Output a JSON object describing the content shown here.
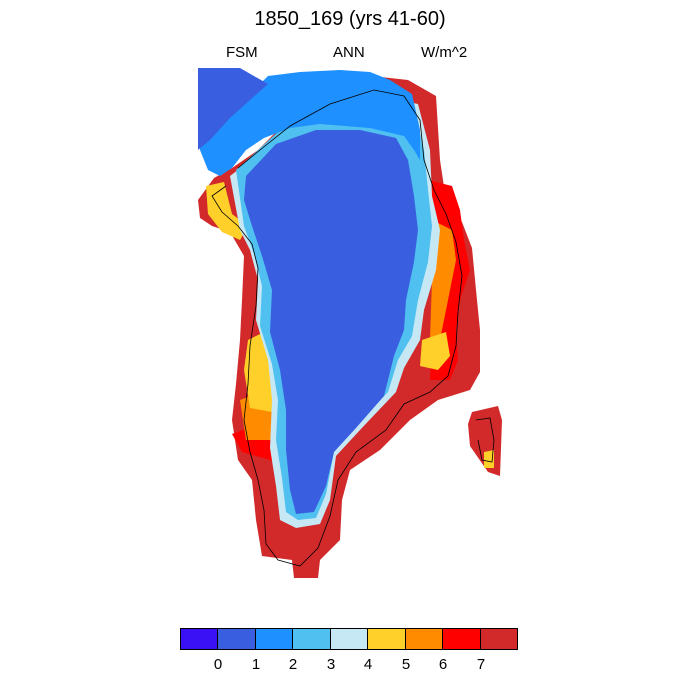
{
  "title": "1850_169 (yrs 41-60)",
  "subtitle": {
    "left": "FSM",
    "center": "ANN",
    "right": "W/m^2"
  },
  "colorbar": {
    "colors": [
      "#3a10f5",
      "#3a5ee0",
      "#1e90ff",
      "#4fc0f0",
      "#c6e8f5",
      "#ffd02a",
      "#ff8c00",
      "#ff0000",
      "#d22a2a"
    ],
    "labels": [
      "0",
      "1",
      "2",
      "3",
      "4",
      "5",
      "6",
      "7"
    ]
  },
  "map": {
    "region": "Greenland",
    "field_levels_note": "Interior ice sheet ~1-2 W/m^2, coastal margins 4-8 W/m^2"
  }
}
